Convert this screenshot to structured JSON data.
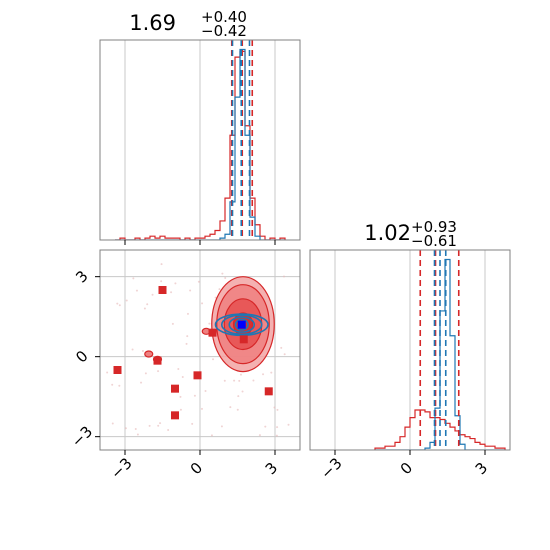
{
  "colors": {
    "primary": "#d62728",
    "secondary": "#1f77b4",
    "marker_secondary": "#0000ff",
    "grid": "#c8c8c8",
    "frame": "#808080"
  },
  "chart_data": [
    {
      "type": "histogram",
      "panel": "top-left",
      "parameter_index": 0,
      "title": {
        "median": "1.69",
        "plus": "+0.40",
        "minus": "−0.42"
      },
      "xlim": [
        -4.0,
        4.0
      ],
      "grid": true,
      "xticks": [
        -3,
        0,
        3
      ],
      "bins_x": [
        -3.4,
        -3.2,
        -3.0,
        -2.8,
        -2.6,
        -2.4,
        -2.2,
        -2.0,
        -1.8,
        -1.6,
        -1.4,
        -1.2,
        -1.0,
        -0.8,
        -0.6,
        -0.4,
        -0.2,
        0.0,
        0.2,
        0.4,
        0.6,
        0.8,
        1.0,
        1.2,
        1.4,
        1.6,
        1.8,
        2.0,
        2.2,
        2.4,
        2.6,
        2.8,
        3.0,
        3.2,
        3.4
      ],
      "series": [
        {
          "color_key": "primary",
          "values": [
            0,
            1,
            0,
            0,
            1,
            0,
            1,
            2,
            1,
            2,
            1,
            1,
            1,
            0,
            1,
            0,
            1,
            1,
            2,
            3,
            5,
            10,
            22,
            55,
            96,
            99,
            60,
            22,
            8,
            2,
            0,
            1,
            0,
            1
          ]
        },
        {
          "color_key": "secondary",
          "values": [
            0,
            0,
            0,
            0,
            0,
            0,
            0,
            0,
            0,
            0,
            0,
            0,
            0,
            0,
            0,
            0,
            0,
            0,
            0,
            0,
            0,
            1,
            3,
            20,
            75,
            100,
            55,
            12,
            2,
            0,
            0,
            0,
            0,
            0
          ]
        }
      ],
      "quantiles": {
        "primary": [
          1.27,
          1.69,
          2.09
        ],
        "secondary": [
          1.3,
          1.65,
          1.98
        ]
      }
    },
    {
      "type": "scatter",
      "panel": "bottom-left",
      "xlim": [
        -4.0,
        4.0
      ],
      "ylim": [
        -3.5,
        4.0
      ],
      "grid": true,
      "xticks": [
        -3,
        0,
        3
      ],
      "yticks": [
        -3,
        0,
        3
      ],
      "xtick_labels": [
        "−3",
        "0",
        "3"
      ],
      "ytick_labels": [
        "−3",
        "0",
        "3"
      ],
      "points": [
        [
          -3.3,
          -0.5
        ],
        [
          -1.5,
          2.5
        ],
        [
          0.5,
          0.9
        ],
        [
          1.75,
          0.65
        ],
        [
          -1.0,
          -1.2
        ],
        [
          -0.1,
          -0.7
        ],
        [
          -1.0,
          -2.2
        ],
        [
          2.75,
          -1.3
        ],
        [
          -1.7,
          -0.15
        ]
      ],
      "secondary_point": [
        1.67,
        1.2
      ],
      "primary_contours": {
        "center": [
          1.72,
          1.22
        ],
        "radii": [
          [
            0.38,
            0.42
          ],
          [
            0.75,
            0.95
          ],
          [
            1.05,
            1.48
          ],
          [
            1.25,
            1.78
          ]
        ]
      },
      "primary_islands": [
        [
          -2.05,
          0.1
        ],
        [
          -1.7,
          -0.1
        ],
        [
          0.25,
          0.95
        ]
      ],
      "secondary_contours": {
        "center": [
          1.67,
          1.2
        ],
        "radii": [
          [
            0.25,
            0.2
          ],
          [
            0.5,
            0.28
          ],
          [
            0.8,
            0.36
          ],
          [
            1.05,
            0.4
          ]
        ]
      }
    },
    {
      "type": "histogram",
      "panel": "bottom-right",
      "parameter_index": 1,
      "title": {
        "median": "1.02",
        "plus": "+0.93",
        "minus": "−0.61"
      },
      "xlim": [
        -4.0,
        4.0
      ],
      "grid": true,
      "xticks": [
        -3,
        0,
        3
      ],
      "xtick_labels": [
        "−3",
        "0",
        "3"
      ],
      "bins_x": [
        -1.4,
        -1.2,
        -1.0,
        -0.8,
        -0.6,
        -0.4,
        -0.2,
        0.0,
        0.2,
        0.4,
        0.6,
        0.8,
        1.0,
        1.2,
        1.4,
        1.6,
        1.8,
        2.0,
        2.2,
        2.4,
        2.6,
        2.8,
        3.0,
        3.2,
        3.4,
        3.6,
        3.8
      ],
      "series": [
        {
          "color_key": "primary",
          "values": [
            1,
            1,
            2,
            2,
            4,
            7,
            12,
            17,
            21,
            21,
            20,
            17,
            17,
            16,
            14,
            12,
            10,
            8,
            7,
            6,
            4,
            3,
            2,
            2,
            1,
            1
          ]
        },
        {
          "color_key": "secondary",
          "values": [
            0,
            0,
            0,
            0,
            0,
            0,
            0,
            0,
            0,
            0,
            1,
            4,
            22,
            73,
            100,
            60,
            18,
            3,
            0,
            0,
            0,
            0,
            0,
            0,
            0,
            0
          ]
        }
      ],
      "quantiles": {
        "primary": [
          0.41,
          1.02,
          1.95
        ],
        "secondary": [
          0.98,
          1.2,
          1.43
        ]
      }
    }
  ]
}
